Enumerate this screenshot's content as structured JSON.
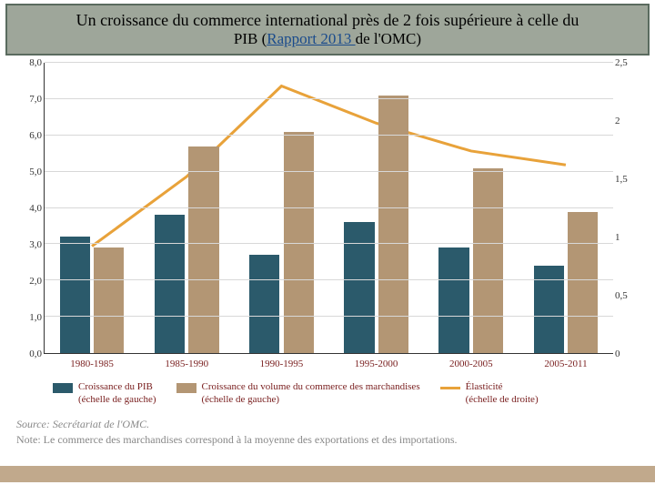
{
  "title": {
    "line1": "Un croissance du commerce international près de 2 fois supérieure à celle du",
    "line2_before": "PIB (",
    "link_text": "Rapport 2013 ",
    "line2_after": "de l'OMC)"
  },
  "chart": {
    "type": "bar+line",
    "left_axis": {
      "min": 0,
      "max": 8,
      "step": 1
    },
    "right_axis": {
      "min": 0,
      "max": 2.5,
      "step": 0.5
    },
    "categories": [
      "1980-1985",
      "1985-1990",
      "1990-1995",
      "1995-2000",
      "2000-2005",
      "2005-2011"
    ],
    "series": {
      "pib": {
        "label_l1": "Croissance du PIB",
        "label_l2": "(échelle de gauche)",
        "color": "#2b5a6b",
        "values": [
          3.2,
          3.8,
          2.7,
          3.6,
          2.9,
          2.4
        ]
      },
      "volume": {
        "label_l1": "Croissance du volume du commerce des marchandises",
        "label_l2": "(échelle de gauche)",
        "color": "#b39674",
        "values": [
          2.9,
          5.7,
          6.1,
          7.1,
          5.1,
          3.9
        ]
      },
      "elast": {
        "label_l1": "Élasticité",
        "label_l2": "(échelle de droite)",
        "color": "#e8a23a",
        "values": [
          0.92,
          1.52,
          2.3,
          1.98,
          1.74,
          1.62
        ]
      }
    },
    "grid_color": "#d8d8d8",
    "axis_color": "#333333",
    "label_color": "#7a2020",
    "label_fontsize": 11
  },
  "source": {
    "label": "Source:",
    "text": "Secrétariat de l'OMC."
  },
  "note": {
    "label": "Note:",
    "text": "Le commerce des marchandises correspond à la moyenne des exportations et des importations."
  },
  "footer_band_color": "#c1a98c"
}
